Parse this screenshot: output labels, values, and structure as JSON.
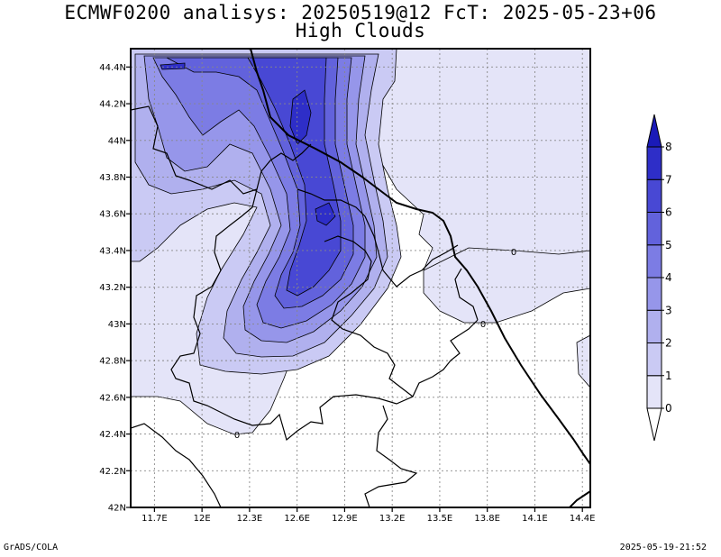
{
  "header": {
    "title_line1": "ECMWF0200 analisys: 20250519@12 FcT: 2025-05-23+06",
    "title_line2": "High Clouds"
  },
  "footer": {
    "left": "GrADS/COLA",
    "right": "2025-05-19-21:52"
  },
  "map": {
    "lon_ticks": [
      "11.7E",
      "12E",
      "12.3E",
      "12.6E",
      "12.9E",
      "13.2E",
      "13.5E",
      "13.8E",
      "14.1E",
      "14.4E"
    ],
    "lat_ticks": [
      "42N",
      "42.2N",
      "42.4N",
      "42.6N",
      "42.8N",
      "43N",
      "43.2N",
      "43.4N",
      "43.6N",
      "43.8N",
      "44N",
      "44.2N",
      "44.4N"
    ],
    "contour_labels": [
      "0",
      "0",
      "0"
    ]
  },
  "colorbar": {
    "labels": [
      "0",
      "1",
      "2",
      "3",
      "4",
      "5",
      "6",
      "7",
      "8"
    ],
    "colors": [
      "#e4e4f8",
      "#cacaf4",
      "#b0b0ee",
      "#9696ea",
      "#7c7ce4",
      "#6262dc",
      "#4848d4",
      "#2e2ec8"
    ],
    "over_color": "#1a1ab8",
    "under_color": "#ffffff"
  },
  "palette": {
    "level0": "#e4e4f8",
    "level1": "#cacaf4",
    "level2": "#b0b0ee",
    "level3": "#9696ea",
    "level4": "#7c7ce4",
    "level5": "#6262dc",
    "level6": "#4848d4",
    "level7": "#2e2ec8"
  }
}
